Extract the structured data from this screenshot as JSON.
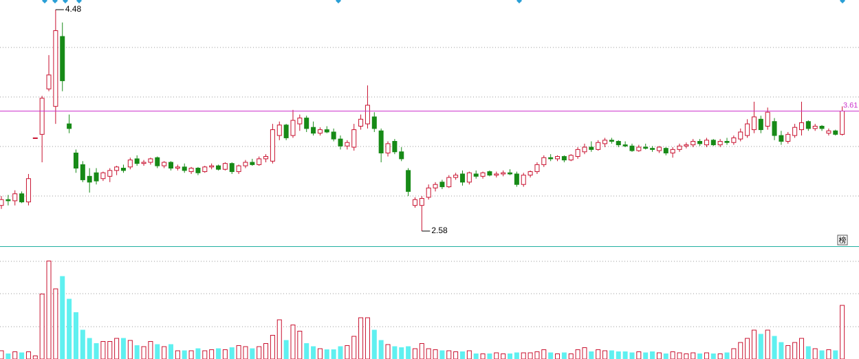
{
  "chart_data": {
    "type": "candlestick",
    "up_color": "#c8102e",
    "down_color": "#178a17",
    "volume_down_color": "#5ff0f0",
    "last_line_color": "#cc33cc",
    "ylim": [
      2.45,
      4.563
    ],
    "volume_ylim": [
      0,
      108
    ],
    "badge": "榜",
    "ohlc": [
      [
        2.8,
        2.88,
        2.77,
        2.85
      ],
      [
        2.85,
        2.89,
        2.8,
        2.84
      ],
      [
        2.84,
        2.93,
        2.8,
        2.9
      ],
      [
        2.9,
        2.92,
        2.82,
        2.83
      ],
      [
        2.83,
        3.07,
        2.8,
        3.03
      ],
      [
        3.38,
        3.38,
        3.38,
        3.38
      ],
      [
        3.41,
        3.74,
        3.17,
        3.72
      ],
      [
        3.8,
        4.09,
        3.78,
        3.92
      ],
      [
        3.65,
        4.48,
        3.5,
        4.3
      ],
      [
        4.25,
        4.37,
        3.78,
        3.87
      ],
      [
        3.5,
        3.58,
        3.42,
        3.46
      ],
      [
        3.25,
        3.28,
        3.08,
        3.12
      ],
      [
        3.15,
        3.18,
        3.0,
        3.02
      ],
      [
        3.05,
        3.12,
        2.91,
        3.0
      ],
      [
        3.08,
        3.12,
        2.98,
        3.01
      ],
      [
        3.03,
        3.09,
        3.01,
        3.08
      ],
      [
        3.05,
        3.12,
        3.0,
        3.1
      ],
      [
        3.1,
        3.14,
        3.06,
        3.13
      ],
      [
        3.12,
        3.15,
        3.08,
        3.1
      ],
      [
        3.13,
        3.21,
        3.11,
        3.19
      ],
      [
        3.2,
        3.23,
        3.14,
        3.16
      ],
      [
        3.16,
        3.19,
        3.14,
        3.17
      ],
      [
        3.17,
        3.21,
        3.15,
        3.2
      ],
      [
        3.21,
        3.22,
        3.12,
        3.14
      ],
      [
        3.14,
        3.18,
        3.12,
        3.17
      ],
      [
        3.17,
        3.18,
        3.1,
        3.12
      ],
      [
        3.12,
        3.15,
        3.1,
        3.13
      ],
      [
        3.13,
        3.16,
        3.08,
        3.1
      ],
      [
        3.09,
        3.13,
        3.07,
        3.12
      ],
      [
        3.12,
        3.13,
        3.06,
        3.08
      ],
      [
        3.09,
        3.14,
        3.08,
        3.13
      ],
      [
        3.13,
        3.16,
        3.11,
        3.14
      ],
      [
        3.14,
        3.15,
        3.1,
        3.11
      ],
      [
        3.11,
        3.17,
        3.1,
        3.16
      ],
      [
        3.16,
        3.17,
        3.07,
        3.09
      ],
      [
        3.09,
        3.15,
        3.07,
        3.14
      ],
      [
        3.14,
        3.19,
        3.12,
        3.17
      ],
      [
        3.17,
        3.2,
        3.14,
        3.15
      ],
      [
        3.15,
        3.22,
        3.14,
        3.2
      ],
      [
        3.2,
        3.24,
        3.17,
        3.22
      ],
      [
        3.18,
        3.5,
        3.16,
        3.45
      ],
      [
        3.4,
        3.52,
        3.36,
        3.49
      ],
      [
        3.49,
        3.5,
        3.36,
        3.38
      ],
      [
        3.4,
        3.62,
        3.38,
        3.53
      ],
      [
        3.5,
        3.58,
        3.44,
        3.55
      ],
      [
        3.55,
        3.57,
        3.43,
        3.46
      ],
      [
        3.47,
        3.52,
        3.4,
        3.42
      ],
      [
        3.42,
        3.47,
        3.4,
        3.45
      ],
      [
        3.45,
        3.48,
        3.42,
        3.43
      ],
      [
        3.43,
        3.46,
        3.35,
        3.37
      ],
      [
        3.37,
        3.4,
        3.28,
        3.31
      ],
      [
        3.31,
        3.36,
        3.28,
        3.34
      ],
      [
        3.3,
        3.5,
        3.27,
        3.45
      ],
      [
        3.48,
        3.58,
        3.45,
        3.54
      ],
      [
        3.5,
        3.83,
        3.46,
        3.66
      ],
      [
        3.56,
        3.6,
        3.43,
        3.46
      ],
      [
        3.44,
        3.46,
        3.17,
        3.25
      ],
      [
        3.25,
        3.35,
        3.22,
        3.33
      ],
      [
        3.35,
        3.37,
        3.24,
        3.26
      ],
      [
        3.26,
        3.3,
        3.18,
        3.2
      ],
      [
        3.1,
        3.12,
        2.88,
        2.92
      ],
      [
        2.8,
        2.87,
        2.78,
        2.85
      ],
      [
        2.8,
        2.88,
        2.58,
        2.86
      ],
      [
        2.87,
        2.98,
        2.85,
        2.95
      ],
      [
        2.95,
        3.0,
        2.92,
        2.98
      ],
      [
        3.0,
        3.02,
        2.94,
        2.96
      ],
      [
        2.96,
        3.06,
        2.95,
        3.04
      ],
      [
        3.04,
        3.08,
        3.02,
        3.06
      ],
      [
        3.07,
        3.1,
        2.97,
        3.0
      ],
      [
        3.0,
        3.09,
        2.98,
        3.08
      ],
      [
        3.07,
        3.1,
        3.03,
        3.05
      ],
      [
        3.05,
        3.09,
        3.03,
        3.08
      ],
      [
        3.09,
        3.1,
        3.05,
        3.06
      ],
      [
        3.06,
        3.09,
        3.04,
        3.07
      ],
      [
        3.07,
        3.1,
        3.05,
        3.08
      ],
      [
        3.08,
        3.11,
        3.06,
        3.07
      ],
      [
        3.07,
        3.09,
        2.96,
        2.98
      ],
      [
        2.98,
        3.08,
        2.96,
        3.06
      ],
      [
        3.06,
        3.1,
        3.04,
        3.09
      ],
      [
        3.09,
        3.17,
        3.07,
        3.15
      ],
      [
        3.15,
        3.23,
        3.13,
        3.21
      ],
      [
        3.21,
        3.24,
        3.18,
        3.2
      ],
      [
        3.2,
        3.23,
        3.18,
        3.22
      ],
      [
        3.22,
        3.23,
        3.17,
        3.19
      ],
      [
        3.19,
        3.24,
        3.18,
        3.23
      ],
      [
        3.22,
        3.3,
        3.2,
        3.28
      ],
      [
        3.26,
        3.33,
        3.24,
        3.3
      ],
      [
        3.3,
        3.35,
        3.26,
        3.28
      ],
      [
        3.28,
        3.36,
        3.27,
        3.34
      ],
      [
        3.33,
        3.38,
        3.3,
        3.36
      ],
      [
        3.36,
        3.38,
        3.33,
        3.35
      ],
      [
        3.35,
        3.36,
        3.3,
        3.32
      ],
      [
        3.32,
        3.35,
        3.3,
        3.31
      ],
      [
        3.31,
        3.33,
        3.26,
        3.27
      ],
      [
        3.27,
        3.32,
        3.26,
        3.3
      ],
      [
        3.3,
        3.33,
        3.28,
        3.29
      ],
      [
        3.29,
        3.31,
        3.26,
        3.28
      ],
      [
        3.27,
        3.31,
        3.25,
        3.3
      ],
      [
        3.29,
        3.3,
        3.23,
        3.25
      ],
      [
        3.25,
        3.3,
        3.21,
        3.28
      ],
      [
        3.28,
        3.33,
        3.26,
        3.31
      ],
      [
        3.31,
        3.34,
        3.29,
        3.32
      ],
      [
        3.32,
        3.37,
        3.3,
        3.35
      ],
      [
        3.35,
        3.37,
        3.31,
        3.33
      ],
      [
        3.32,
        3.38,
        3.3,
        3.36
      ],
      [
        3.36,
        3.37,
        3.31,
        3.32
      ],
      [
        3.32,
        3.37,
        3.3,
        3.35
      ],
      [
        3.35,
        3.38,
        3.32,
        3.34
      ],
      [
        3.34,
        3.4,
        3.32,
        3.38
      ],
      [
        3.37,
        3.46,
        3.35,
        3.43
      ],
      [
        3.4,
        3.54,
        3.38,
        3.5
      ],
      [
        3.45,
        3.69,
        3.42,
        3.56
      ],
      [
        3.54,
        3.57,
        3.42,
        3.45
      ],
      [
        3.48,
        3.64,
        3.45,
        3.6
      ],
      [
        3.52,
        3.55,
        3.36,
        3.4
      ],
      [
        3.4,
        3.44,
        3.32,
        3.35
      ],
      [
        3.35,
        3.43,
        3.33,
        3.41
      ],
      [
        3.4,
        3.5,
        3.38,
        3.47
      ],
      [
        3.45,
        3.69,
        3.4,
        3.51
      ],
      [
        3.52,
        3.53,
        3.44,
        3.46
      ],
      [
        3.46,
        3.5,
        3.44,
        3.48
      ],
      [
        3.48,
        3.49,
        3.44,
        3.46
      ],
      [
        3.42,
        3.46,
        3.4,
        3.44
      ],
      [
        3.44,
        3.45,
        3.4,
        3.41
      ],
      [
        3.41,
        3.65,
        3.4,
        3.61
      ]
    ],
    "volumes": [
      8,
      5,
      7,
      6,
      7,
      3,
      63,
      95,
      68,
      80,
      58,
      45,
      28,
      20,
      15,
      17,
      17,
      20,
      20,
      18,
      13,
      12,
      17,
      14,
      12,
      14,
      8,
      8,
      8,
      10,
      8,
      9,
      10,
      9,
      11,
      13,
      12,
      10,
      12,
      15,
      23,
      38,
      18,
      33,
      27,
      15,
      12,
      10,
      9,
      9,
      12,
      13,
      22,
      40,
      40,
      28,
      18,
      14,
      12,
      11,
      12,
      10,
      15,
      10,
      9,
      8,
      8,
      7,
      7,
      8,
      5,
      5,
      5,
      6,
      5,
      5,
      6,
      6,
      6,
      7,
      9,
      6,
      5,
      6,
      5,
      9,
      11,
      7,
      9,
      8,
      8,
      7,
      7,
      6,
      7,
      6,
      7,
      6,
      5,
      7,
      6,
      5,
      6,
      5,
      6,
      5,
      5,
      6,
      10,
      16,
      20,
      28,
      24,
      28,
      22,
      16,
      13,
      16,
      20,
      12,
      10,
      8,
      9,
      8,
      52
    ]
  }
}
